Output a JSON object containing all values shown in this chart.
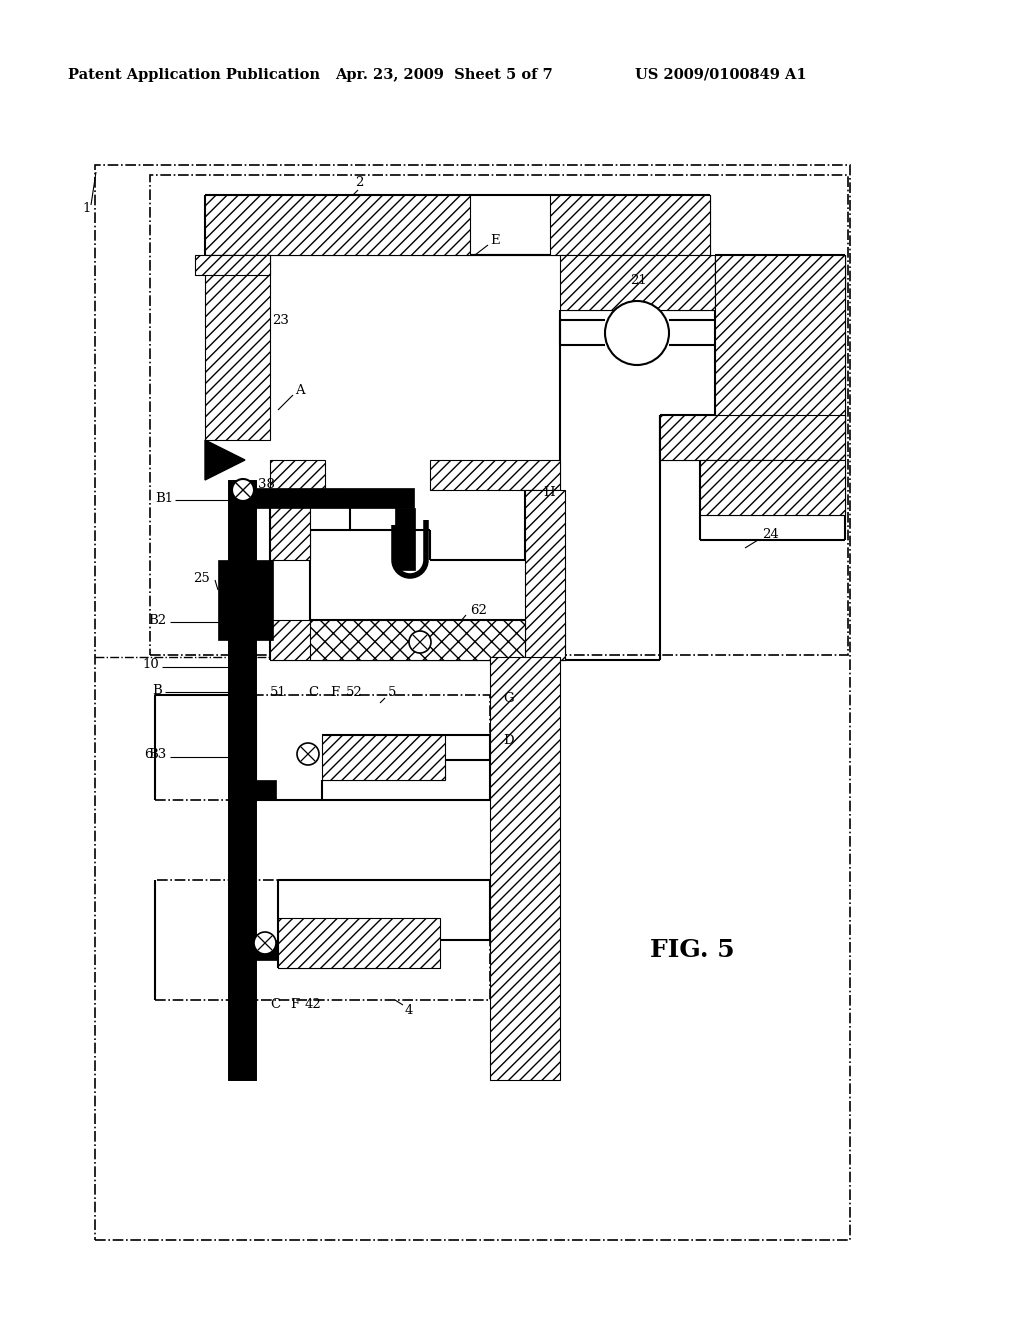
{
  "bg_color": "#ffffff",
  "header_left": "Patent Application Publication",
  "header_mid": "Apr. 23, 2009  Sheet 5 of 7",
  "header_right": "US 2009/0100849 A1",
  "fig_label": "FIG. 5",
  "header_fontsize": 10.5,
  "fig_label_fontsize": 18,
  "label_fontsize": 9.5
}
